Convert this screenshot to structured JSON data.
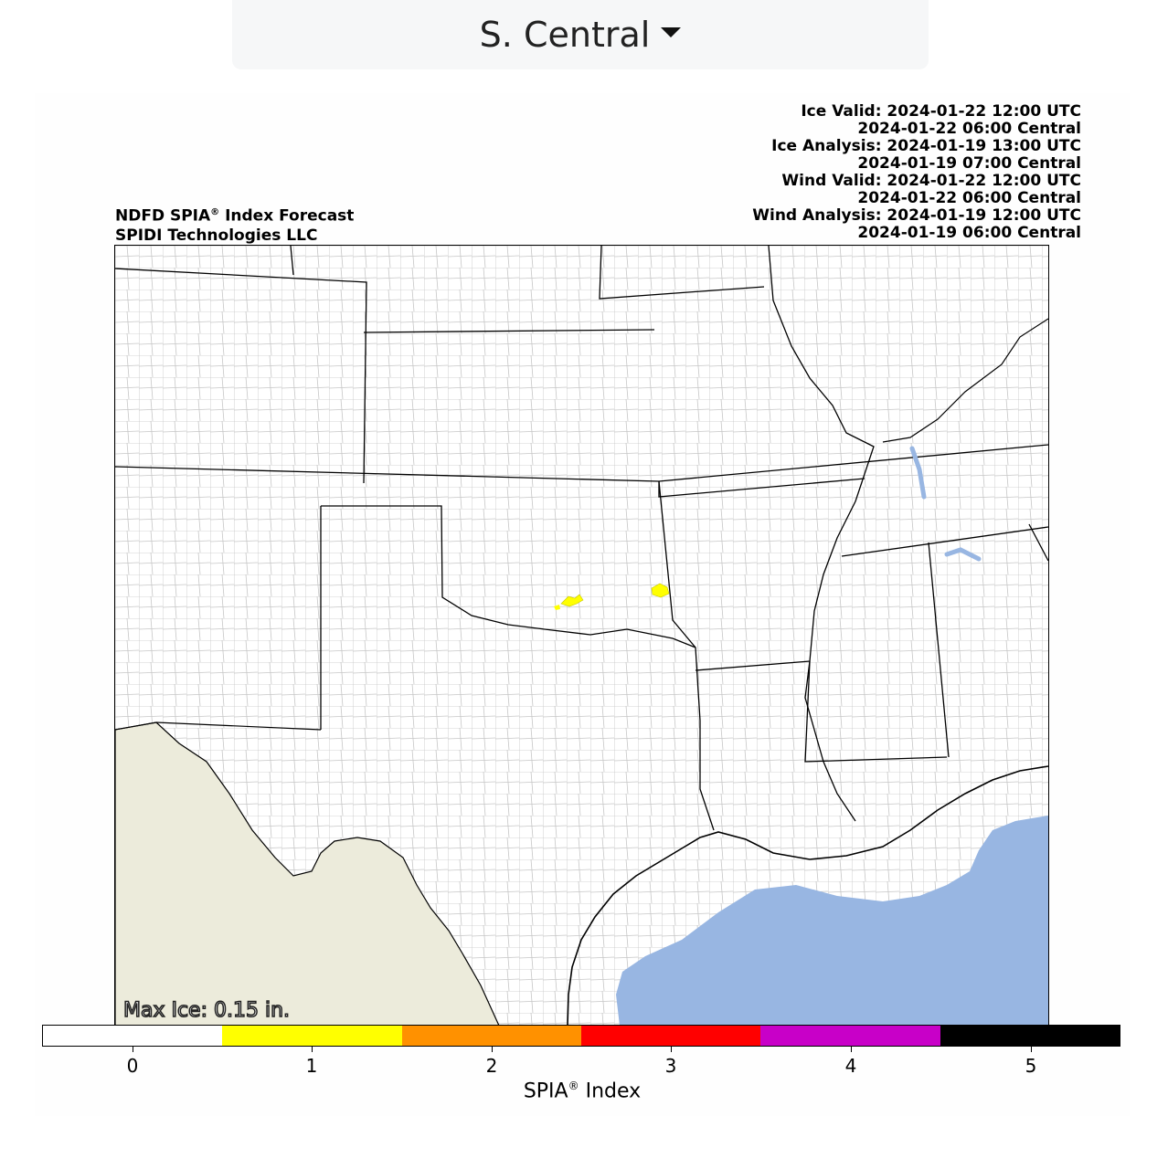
{
  "region_selector": {
    "label": "S. Central",
    "icon": "caret-down-icon"
  },
  "header": {
    "title_prefix": "NDFD SPIA",
    "title_suffix": " Index Forecast",
    "registered": "®",
    "company": "SPIDI Technologies LLC",
    "timestamps": [
      "Ice Valid: 2024-01-22 12:00 UTC",
      "2024-01-22 06:00 Central",
      "Ice Analysis: 2024-01-19 13:00 UTC",
      "2024-01-19 07:00 Central",
      "Wind Valid: 2024-01-22 12:00 UTC",
      "2024-01-22 06:00 Central",
      "Wind Analysis: 2024-01-19 12:00 UTC",
      "2024-01-19 06:00 Central"
    ]
  },
  "map": {
    "max_ice": "Max Ice: 0.15 in.",
    "colors": {
      "land": "#ffffff",
      "mexico": "#ecebdb",
      "water": "#98b6e2",
      "ice_index_1": "#ffff00"
    }
  },
  "colorbar": {
    "title_prefix": "SPIA",
    "title_suffix": " Index",
    "registered": "®",
    "ticks": [
      "0",
      "1",
      "2",
      "3",
      "4",
      "5"
    ],
    "colors": [
      "#ffffff",
      "#ffff00",
      "#ff9100",
      "#ff0000",
      "#c800c8",
      "#000000"
    ]
  }
}
